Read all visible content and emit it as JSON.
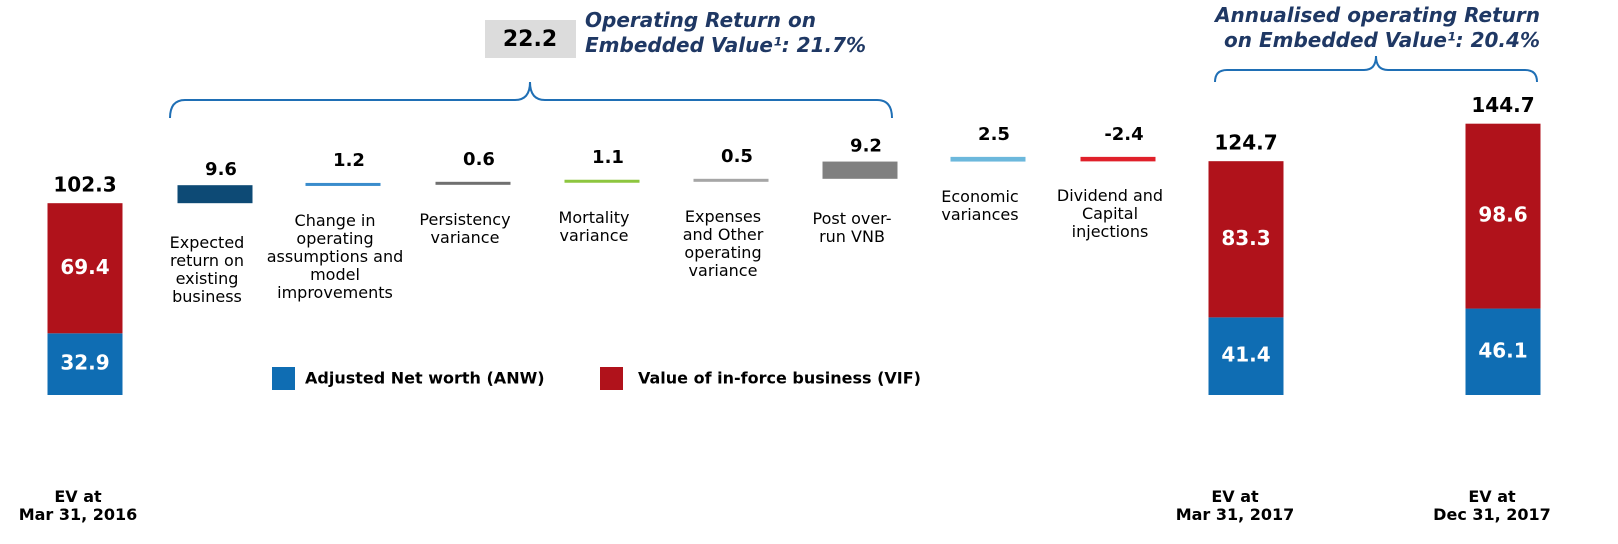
{
  "chart_data": {
    "type": "waterfall",
    "series": [
      {
        "name": "Adjusted Net worth (ANW)",
        "color": "#0f6db3"
      },
      {
        "name": "Value of in-force business (VIF)",
        "color": "#b0121b"
      }
    ],
    "totals": [
      {
        "label": "EV at\nMar 31, 2016",
        "total": 102.3,
        "values": [
          32.9,
          69.4
        ]
      },
      {
        "label": "EV at\nMar 31, 2017",
        "total": 124.7,
        "values": [
          41.4,
          83.3
        ]
      },
      {
        "label": "EV at\nDec 31, 2017",
        "total": 144.7,
        "values": [
          46.1,
          98.6
        ]
      }
    ],
    "steps": [
      {
        "label": "Expected\nreturn on\nexisting\nbusiness",
        "value": 9.6,
        "color": "#0d4a75"
      },
      {
        "label": "Change in\noperating\nassumptions and\nmodel\nimprovements",
        "value": 1.2,
        "color": "#3a8ccc"
      },
      {
        "label": "Persistency\nvariance",
        "value": 0.6,
        "color": "#707070"
      },
      {
        "label": "Mortality\nvariance",
        "value": 1.1,
        "color": "#8dc63f"
      },
      {
        "label": "Expenses\nand Other\noperating\nvariance",
        "value": 0.5,
        "color": "#a6a6a6"
      },
      {
        "label": "Post over-\nrun VNB",
        "value": 9.2,
        "color": "#808080"
      },
      {
        "label": "Economic\nvariances",
        "value": 2.5,
        "color": "#6cb8dc"
      },
      {
        "label": "Dividend and\nCapital\ninjections",
        "value": -2.4,
        "color": "#e0202a"
      }
    ],
    "annotations": [
      {
        "value": 22.2,
        "text": "Operating Return on\nEmbedded Value¹: 21.7%"
      },
      {
        "text": "Annualised operating Return\non Embedded Value¹: 20.4%"
      }
    ]
  }
}
